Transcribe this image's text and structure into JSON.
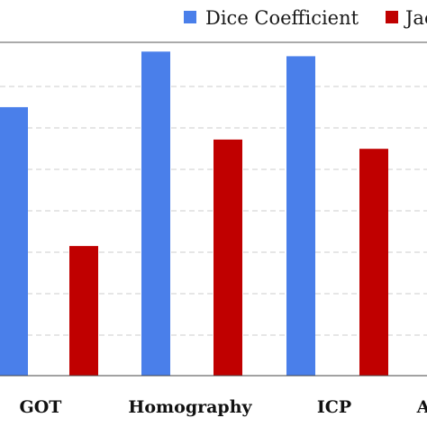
{
  "chart_data": {
    "type": "bar",
    "categories": [
      "GOT",
      "Homography",
      "ICP",
      "A"
    ],
    "series": [
      {
        "name": "Dice Coefficient",
        "color": "#4a7fea",
        "values": [
          0.58,
          0.7,
          0.69,
          null
        ]
      },
      {
        "name": "Jac",
        "color": "#c00000",
        "values": [
          0.28,
          0.51,
          0.49,
          null
        ]
      }
    ],
    "ylim": [
      0,
      0.72
    ],
    "grid": true,
    "legend_position": "top-right"
  }
}
